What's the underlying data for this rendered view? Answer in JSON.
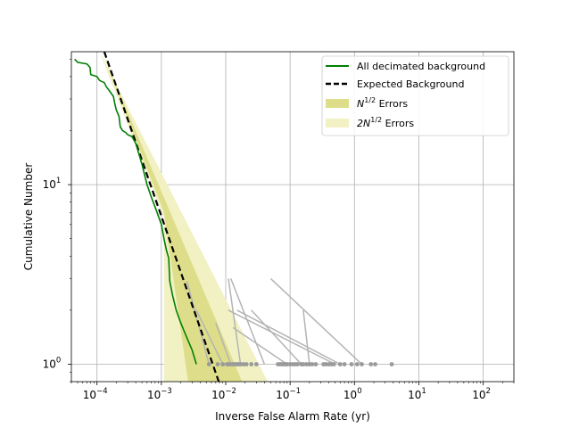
{
  "chart_data": {
    "type": "line",
    "title": "",
    "xlabel": "Inverse False Alarm Rate (yr)",
    "ylabel": "Cumulative Number",
    "xscale": "log",
    "yscale": "log",
    "xlim": [
      4e-05,
      300
    ],
    "ylim": [
      0.8,
      55
    ],
    "grid": true,
    "legend_position": "top-right",
    "x_ticks": [
      {
        "value": 0.0001,
        "base": "10",
        "exp": "−4"
      },
      {
        "value": 0.001,
        "base": "10",
        "exp": "−3"
      },
      {
        "value": 0.01,
        "base": "10",
        "exp": "−2"
      },
      {
        "value": 0.1,
        "base": "10",
        "exp": "−1"
      },
      {
        "value": 1,
        "base": "10",
        "exp": "0"
      },
      {
        "value": 10,
        "base": "10",
        "exp": "1"
      },
      {
        "value": 100,
        "base": "10",
        "exp": "2"
      }
    ],
    "y_ticks": [
      {
        "value": 1,
        "base": "10",
        "exp": "0"
      },
      {
        "value": 10,
        "base": "10",
        "exp": "1"
      }
    ],
    "legend": [
      {
        "key": "background",
        "label": "All decimated background",
        "color": "#008000",
        "style": "solid-line"
      },
      {
        "key": "expected",
        "label": "Expected Background",
        "color": "#000000",
        "style": "dashed-line"
      },
      {
        "key": "err1",
        "label_main": "N",
        "label_sup": "1/2",
        "label_rest": " Errors",
        "color": "#dede8a",
        "style": "patch"
      },
      {
        "key": "err2",
        "label_main": "2N",
        "label_sup": "1/2",
        "label_rest": " Errors",
        "color": "#f1f1c4",
        "style": "patch"
      }
    ],
    "series": [
      {
        "name": "All decimated background",
        "color": "#008000",
        "points": [
          [
            4.5e-05,
            50
          ],
          [
            5e-05,
            48
          ],
          [
            7e-05,
            47
          ],
          [
            7.8e-05,
            45
          ],
          [
            8e-05,
            41
          ],
          [
            0.0001,
            40
          ],
          [
            0.00011,
            38
          ],
          [
            0.00013,
            37
          ],
          [
            0.00014,
            35
          ],
          [
            0.00015,
            34
          ],
          [
            0.00018,
            31
          ],
          [
            0.00019,
            28
          ],
          [
            0.0002,
            26
          ],
          [
            0.00022,
            24
          ],
          [
            0.00023,
            21
          ],
          [
            0.00025,
            20
          ],
          [
            0.00028,
            19.5
          ],
          [
            0.0003,
            19
          ],
          [
            0.00035,
            18.5
          ],
          [
            0.0004,
            17
          ],
          [
            0.0005,
            13
          ],
          [
            0.0006,
            10
          ],
          [
            0.0007,
            8.5
          ],
          [
            0.0008,
            7.5
          ],
          [
            0.001,
            6
          ],
          [
            0.0011,
            5
          ],
          [
            0.0012,
            4.3
          ],
          [
            0.0013,
            3.9
          ],
          [
            0.00135,
            2.9
          ],
          [
            0.0015,
            2.4
          ],
          [
            0.0017,
            2.0
          ],
          [
            0.002,
            1.7
          ],
          [
            0.0024,
            1.45
          ],
          [
            0.003,
            1.2
          ],
          [
            0.0035,
            1.0
          ]
        ]
      },
      {
        "name": "Expected Background",
        "color": "#000000",
        "points": [
          [
            0.00013,
            55
          ],
          [
            0.0078,
            0.8
          ]
        ]
      }
    ],
    "bands": [
      {
        "name": "2N^1/2 Errors",
        "color": "#f1f1c4",
        "points": [
          [
            0.00011,
            55
          ],
          [
            0.0011,
            6.5
          ],
          [
            0.0011,
            0.8
          ],
          [
            0.045,
            0.8
          ]
        ]
      },
      {
        "name": "N^1/2 Errors",
        "color": "#dede8a",
        "points": [
          [
            0.00012,
            55
          ],
          [
            0.0011,
            7.0
          ],
          [
            0.0026,
            0.8
          ],
          [
            0.018,
            0.8
          ]
        ]
      }
    ],
    "gray_tracks": [
      [
        [
          0.0025,
          2.9
        ],
        [
          0.0055,
          1.0
        ]
      ],
      [
        [
          0.0035,
          2.0
        ],
        [
          0.009,
          1.0
        ]
      ],
      [
        [
          0.007,
          1.7
        ],
        [
          0.012,
          1.0
        ]
      ],
      [
        [
          0.011,
          3.0
        ],
        [
          0.017,
          1.0
        ]
      ],
      [
        [
          0.012,
          3.0
        ],
        [
          0.04,
          1.0
        ]
      ],
      [
        [
          0.011,
          2.0
        ],
        [
          0.5,
          1.0
        ]
      ],
      [
        [
          0.015,
          2.0
        ],
        [
          0.6,
          1.0
        ]
      ],
      [
        [
          0.025,
          2.0
        ],
        [
          0.15,
          1.0
        ]
      ],
      [
        [
          0.05,
          3.0
        ],
        [
          1.3,
          1.0
        ]
      ],
      [
        [
          0.16,
          2.0
        ],
        [
          0.2,
          1.0
        ]
      ],
      [
        [
          0.013,
          1.6
        ],
        [
          0.09,
          1.0
        ]
      ]
    ],
    "gray_points_x": [
      0.0055,
      0.0075,
      0.009,
      0.0105,
      0.011,
      0.012,
      0.013,
      0.014,
      0.015,
      0.016,
      0.017,
      0.019,
      0.021,
      0.025,
      0.03,
      0.065,
      0.07,
      0.075,
      0.08,
      0.085,
      0.09,
      0.1,
      0.11,
      0.12,
      0.13,
      0.15,
      0.16,
      0.18,
      0.2,
      0.22,
      0.25,
      0.33,
      0.36,
      0.4,
      0.44,
      0.48,
      0.6,
      0.7,
      0.9,
      1.1,
      1.3,
      1.8,
      2.1,
      3.8
    ],
    "gray_points_y": 1
  }
}
